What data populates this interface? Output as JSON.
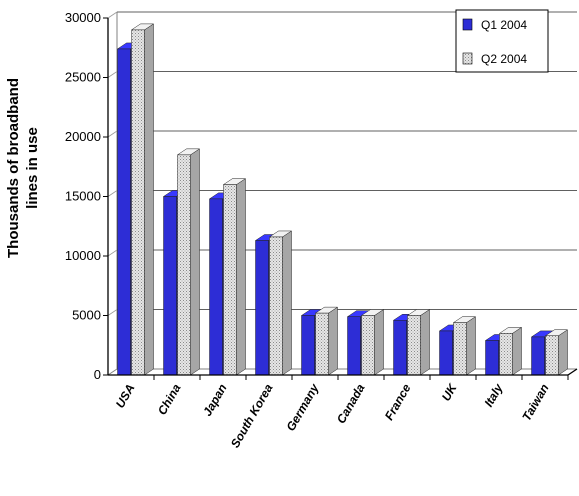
{
  "chart_data": {
    "type": "bar",
    "title": "",
    "xlabel": "",
    "ylabel_lines": [
      "Thousands of broadband",
      "lines in use"
    ],
    "ylim": [
      0,
      30000
    ],
    "yticks": [
      0,
      5000,
      10000,
      15000,
      20000,
      25000,
      30000
    ],
    "ytick_labels": [
      "0",
      "5000",
      "10000",
      "15000",
      "20000",
      "25000",
      "30000"
    ],
    "grid": true,
    "legend_position": "top-right",
    "categories": [
      "USA",
      "China",
      "Japan",
      "South Korea",
      "Germany",
      "Canada",
      "France",
      "UK",
      "Italy",
      "Taiwan"
    ],
    "series": [
      {
        "name": "Q1 2004",
        "color": "#2d2dd6",
        "values": [
          27400,
          15000,
          14800,
          11300,
          5000,
          4900,
          4600,
          3700,
          2900,
          3200
        ]
      },
      {
        "name": "Q2 2004",
        "color": "#d4d4d4",
        "values": [
          29000,
          18500,
          16000,
          11600,
          5200,
          5000,
          5000,
          4400,
          3500,
          3300
        ]
      }
    ]
  }
}
